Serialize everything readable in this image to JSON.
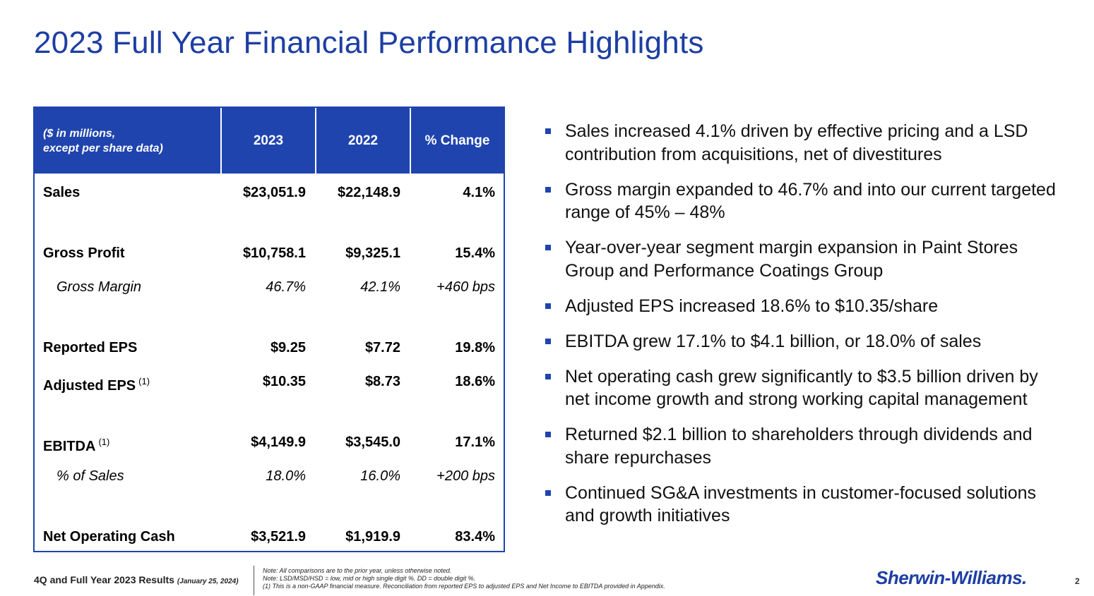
{
  "title": "2023 Full Year Financial Performance Highlights",
  "table": {
    "header_label_line1": "($ in millions,",
    "header_label_line2": "except per share data)",
    "col1": "2023",
    "col2": "2022",
    "col3": "% Change",
    "rows": [
      {
        "name": "Sales",
        "v1": "$23,051.9",
        "v2": "$22,148.9",
        "v3": "4.1%"
      },
      {
        "name": "Gross Profit",
        "v1": "$10,758.1",
        "v2": "$9,325.1",
        "v3": "15.4%"
      },
      {
        "name": "Gross Margin",
        "v1": "46.7%",
        "v2": "42.1%",
        "v3": "+460 bps"
      },
      {
        "name": "Reported EPS",
        "v1": "$9.25",
        "v2": "$7.72",
        "v3": "19.8%"
      },
      {
        "name": "Adjusted EPS",
        "sup": "(1)",
        "v1": "$10.35",
        "v2": "$8.73",
        "v3": "18.6%"
      },
      {
        "name": "EBITDA",
        "sup": "(1)",
        "v1": "$4,149.9",
        "v2": "$3,545.0",
        "v3": "17.1%"
      },
      {
        "name": "% of Sales",
        "v1": "18.0%",
        "v2": "16.0%",
        "v3": "+200 bps"
      },
      {
        "name": "Net Operating Cash",
        "v1": "$3,521.9",
        "v2": "$1,919.9",
        "v3": "83.4%"
      }
    ]
  },
  "bullets": [
    "Sales increased 4.1% driven by effective pricing and a LSD contribution from acquisitions, net of divestitures",
    "Gross margin expanded to 46.7% and into our current targeted range of 45% – 48%",
    "Year-over-year segment margin expansion in Paint Stores Group and Performance Coatings Group",
    "Adjusted EPS increased 18.6% to $10.35/share",
    "EBITDA grew 17.1% to $4.1 billion, or 18.0% of sales",
    "Net operating cash grew significantly to $3.5 billion driven by net income growth and strong working capital management",
    "Returned $2.1 billion to shareholders through dividends and share repurchases",
    "Continued SG&A investments in customer-focused solutions and growth initiatives"
  ],
  "footer": {
    "left": "4Q and Full Year 2023 Results",
    "date": "(January 25, 2024)",
    "note1": "Note: All comparisons are to the prior year, unless otherwise noted.",
    "note2": "Note: LSD/MSD/HSD = low, mid or high single digit %.  DD = double digit %.",
    "note3": "(1) This is a non-GAAP financial measure.  Reconciliation from reported EPS to adjusted EPS and Net Income to EBITDA provided in Appendix.",
    "logo": "Sherwin-Williams.",
    "page": "2"
  },
  "colors": {
    "brand_blue": "#1f44ad",
    "title_blue": "#1d3ea3"
  }
}
